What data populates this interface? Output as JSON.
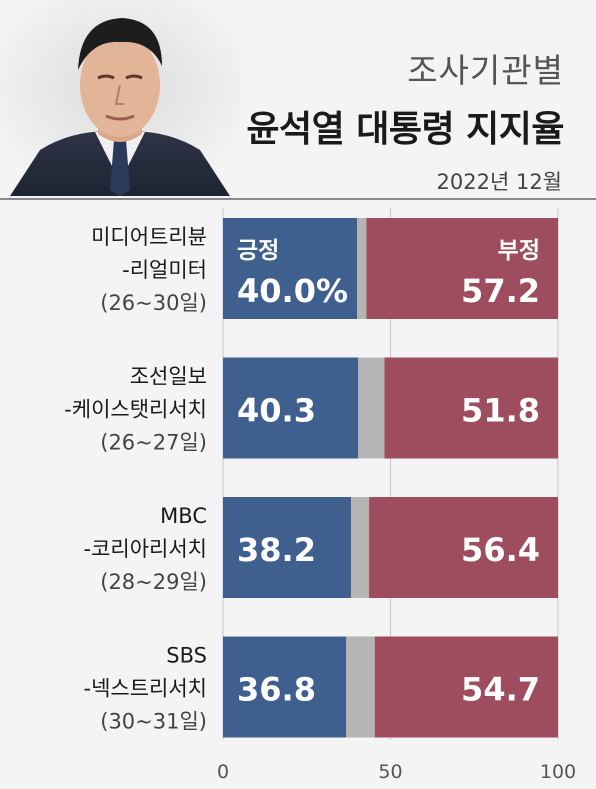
{
  "header": {
    "sup_title": "조사기관별",
    "title": "윤석열 대통령 지지율",
    "date": "2022년 12월"
  },
  "chart_data": {
    "type": "bar",
    "stacked": true,
    "orientation": "horizontal",
    "title": "윤석열 대통령 지지율",
    "categories": [
      [
        "미디어트리뷴",
        "-리얼미터",
        "(26~30일)"
      ],
      [
        "조선일보",
        "-케이스탯리서치",
        "(26~27일)"
      ],
      [
        "MBC",
        "-코리아리서치",
        "(28~29일)"
      ],
      [
        "SBS",
        "-넥스트리서치",
        "(30~31일)"
      ]
    ],
    "series": [
      {
        "name": "긍정",
        "values": [
          40.0,
          40.3,
          38.2,
          36.8
        ],
        "labels": [
          "40.0%",
          "40.3",
          "38.2",
          "36.8"
        ],
        "color": "#3f5f8f"
      },
      {
        "name": "",
        "values": [
          2.8,
          7.9,
          5.4,
          8.5
        ],
        "color": "#b5b5b5"
      },
      {
        "name": "부정",
        "values": [
          57.2,
          51.8,
          56.4,
          54.7
        ],
        "labels": [
          "57.2",
          "51.8",
          "56.4",
          "54.7"
        ],
        "color": "#9e4d5f"
      }
    ],
    "xlim": [
      0,
      100
    ],
    "xticks": [
      "0",
      "50",
      "100"
    ],
    "legend": "inside-first-bar"
  }
}
